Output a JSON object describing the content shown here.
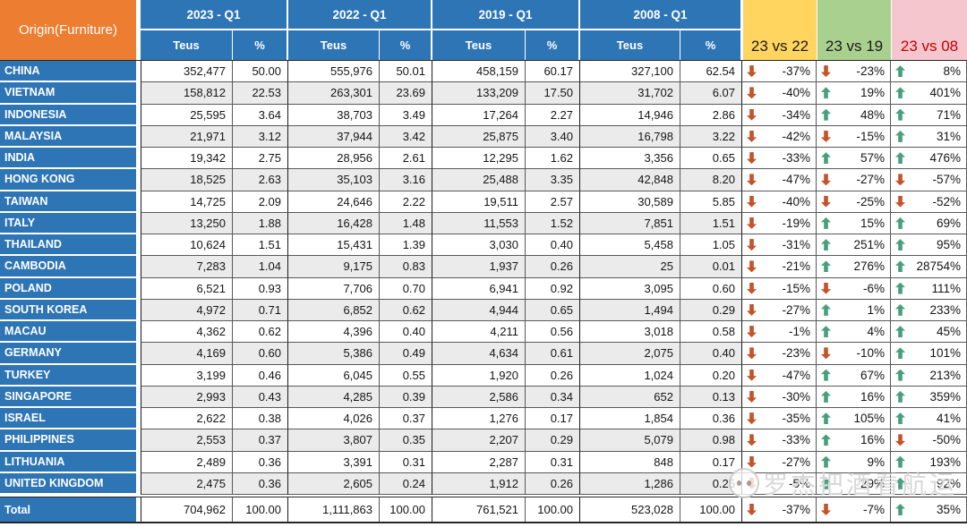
{
  "header": {
    "origin_label": "Origin(Furniture)",
    "periods": [
      {
        "label": "2023 - Q1",
        "teus_label": "Teus",
        "pct_label": "%"
      },
      {
        "label": "2022 - Q1",
        "teus_label": "Teus",
        "pct_label": "%"
      },
      {
        "label": "2019 - Q1",
        "teus_label": "Teus",
        "pct_label": "%"
      },
      {
        "label": "2008 - Q1",
        "teus_label": "Teus",
        "pct_label": "%"
      }
    ],
    "comparisons": [
      {
        "label": "23 vs 22",
        "bg": "#FFD45F",
        "color": "#1a1a1a"
      },
      {
        "label": "23 vs 19",
        "bg": "#A9D08E",
        "color": "#1a1a1a"
      },
      {
        "label": "23 vs 08",
        "bg": "#F6C6CE",
        "color": "#C00000"
      }
    ]
  },
  "colors": {
    "header_blue": "#2E75B6",
    "header_orange": "#ED7D31",
    "alt_row": "#EBEBEB",
    "up_arrow": "#47A07B",
    "down_arrow": "#C4532A"
  },
  "rows": [
    {
      "origin": "CHINA",
      "values": [
        "352,477",
        "50.00",
        "555,976",
        "50.01",
        "458,159",
        "60.17",
        "327,100",
        "62.54"
      ],
      "comps": [
        {
          "dir": "down",
          "val": "-37%"
        },
        {
          "dir": "down",
          "val": "-23%"
        },
        {
          "dir": "up",
          "val": "8%"
        }
      ]
    },
    {
      "origin": "VIETNAM",
      "values": [
        "158,812",
        "22.53",
        "263,301",
        "23.69",
        "133,209",
        "17.50",
        "31,702",
        "6.07"
      ],
      "comps": [
        {
          "dir": "down",
          "val": "-40%"
        },
        {
          "dir": "up",
          "val": "19%"
        },
        {
          "dir": "up",
          "val": "401%"
        }
      ]
    },
    {
      "origin": "INDONESIA",
      "values": [
        "25,595",
        "3.64",
        "38,703",
        "3.49",
        "17,264",
        "2.27",
        "14,946",
        "2.86"
      ],
      "comps": [
        {
          "dir": "down",
          "val": "-34%"
        },
        {
          "dir": "up",
          "val": "48%"
        },
        {
          "dir": "up",
          "val": "71%"
        }
      ]
    },
    {
      "origin": "MALAYSIA",
      "values": [
        "21,971",
        "3.12",
        "37,944",
        "3.42",
        "25,875",
        "3.40",
        "16,798",
        "3.22"
      ],
      "comps": [
        {
          "dir": "down",
          "val": "-42%"
        },
        {
          "dir": "down",
          "val": "-15%"
        },
        {
          "dir": "up",
          "val": "31%"
        }
      ]
    },
    {
      "origin": "INDIA",
      "values": [
        "19,342",
        "2.75",
        "28,956",
        "2.61",
        "12,295",
        "1.62",
        "3,356",
        "0.65"
      ],
      "comps": [
        {
          "dir": "down",
          "val": "-33%"
        },
        {
          "dir": "up",
          "val": "57%"
        },
        {
          "dir": "up",
          "val": "476%"
        }
      ]
    },
    {
      "origin": "HONG KONG",
      "values": [
        "18,525",
        "2.63",
        "35,103",
        "3.16",
        "25,488",
        "3.35",
        "42,848",
        "8.20"
      ],
      "comps": [
        {
          "dir": "down",
          "val": "-47%"
        },
        {
          "dir": "down",
          "val": "-27%"
        },
        {
          "dir": "down",
          "val": "-57%"
        }
      ]
    },
    {
      "origin": "TAIWAN",
      "values": [
        "14,725",
        "2.09",
        "24,646",
        "2.22",
        "19,511",
        "2.57",
        "30,589",
        "5.85"
      ],
      "comps": [
        {
          "dir": "down",
          "val": "-40%"
        },
        {
          "dir": "down",
          "val": "-25%"
        },
        {
          "dir": "down",
          "val": "-52%"
        }
      ]
    },
    {
      "origin": "ITALY",
      "values": [
        "13,250",
        "1.88",
        "16,428",
        "1.48",
        "11,553",
        "1.52",
        "7,851",
        "1.51"
      ],
      "comps": [
        {
          "dir": "down",
          "val": "-19%"
        },
        {
          "dir": "up",
          "val": "15%"
        },
        {
          "dir": "up",
          "val": "69%"
        }
      ]
    },
    {
      "origin": "THAILAND",
      "values": [
        "10,624",
        "1.51",
        "15,431",
        "1.39",
        "3,030",
        "0.40",
        "5,458",
        "1.05"
      ],
      "comps": [
        {
          "dir": "down",
          "val": "-31%"
        },
        {
          "dir": "up",
          "val": "251%"
        },
        {
          "dir": "up",
          "val": "95%"
        }
      ]
    },
    {
      "origin": "CAMBODIA",
      "values": [
        "7,283",
        "1.04",
        "9,175",
        "0.83",
        "1,937",
        "0.26",
        "25",
        "0.01"
      ],
      "comps": [
        {
          "dir": "down",
          "val": "-21%"
        },
        {
          "dir": "up",
          "val": "276%"
        },
        {
          "dir": "up",
          "val": "28754%"
        }
      ]
    },
    {
      "origin": "POLAND",
      "values": [
        "6,521",
        "0.93",
        "7,706",
        "0.70",
        "6,941",
        "0.92",
        "3,095",
        "0.60"
      ],
      "comps": [
        {
          "dir": "down",
          "val": "-15%"
        },
        {
          "dir": "down",
          "val": "-6%"
        },
        {
          "dir": "up",
          "val": "111%"
        }
      ]
    },
    {
      "origin": "SOUTH KOREA",
      "values": [
        "4,972",
        "0.71",
        "6,852",
        "0.62",
        "4,944",
        "0.65",
        "1,494",
        "0.29"
      ],
      "comps": [
        {
          "dir": "down",
          "val": "-27%"
        },
        {
          "dir": "up",
          "val": "1%"
        },
        {
          "dir": "up",
          "val": "233%"
        }
      ]
    },
    {
      "origin": "MACAU",
      "values": [
        "4,362",
        "0.62",
        "4,396",
        "0.40",
        "4,211",
        "0.56",
        "3,018",
        "0.58"
      ],
      "comps": [
        {
          "dir": "down",
          "val": "-1%"
        },
        {
          "dir": "up",
          "val": "4%"
        },
        {
          "dir": "up",
          "val": "45%"
        }
      ]
    },
    {
      "origin": "GERMANY",
      "values": [
        "4,169",
        "0.60",
        "5,386",
        "0.49",
        "4,634",
        "0.61",
        "2,075",
        "0.40"
      ],
      "comps": [
        {
          "dir": "down",
          "val": "-23%"
        },
        {
          "dir": "down",
          "val": "-10%"
        },
        {
          "dir": "up",
          "val": "101%"
        }
      ]
    },
    {
      "origin": "TURKEY",
      "values": [
        "3,199",
        "0.46",
        "6,045",
        "0.55",
        "1,920",
        "0.26",
        "1,024",
        "0.20"
      ],
      "comps": [
        {
          "dir": "down",
          "val": "-47%"
        },
        {
          "dir": "up",
          "val": "67%"
        },
        {
          "dir": "up",
          "val": "213%"
        }
      ]
    },
    {
      "origin": "SINGAPORE",
      "values": [
        "2,993",
        "0.43",
        "4,285",
        "0.39",
        "2,586",
        "0.34",
        "652",
        "0.13"
      ],
      "comps": [
        {
          "dir": "down",
          "val": "-30%"
        },
        {
          "dir": "up",
          "val": "16%"
        },
        {
          "dir": "up",
          "val": "359%"
        }
      ]
    },
    {
      "origin": "ISRAEL",
      "values": [
        "2,622",
        "0.38",
        "4,026",
        "0.37",
        "1,276",
        "0.17",
        "1,854",
        "0.36"
      ],
      "comps": [
        {
          "dir": "down",
          "val": "-35%"
        },
        {
          "dir": "up",
          "val": "105%"
        },
        {
          "dir": "up",
          "val": "41%"
        }
      ]
    },
    {
      "origin": "PHILIPPINES",
      "values": [
        "2,553",
        "0.37",
        "3,807",
        "0.35",
        "2,207",
        "0.29",
        "5,079",
        "0.98"
      ],
      "comps": [
        {
          "dir": "down",
          "val": "-33%"
        },
        {
          "dir": "up",
          "val": "16%"
        },
        {
          "dir": "down",
          "val": "-50%"
        }
      ]
    },
    {
      "origin": "LITHUANIA",
      "values": [
        "2,489",
        "0.36",
        "3,391",
        "0.31",
        "2,287",
        "0.31",
        "848",
        "0.17"
      ],
      "comps": [
        {
          "dir": "down",
          "val": "-27%"
        },
        {
          "dir": "up",
          "val": "9%"
        },
        {
          "dir": "up",
          "val": "193%"
        }
      ]
    },
    {
      "origin": "UNITED KINGDOM",
      "values": [
        "2,475",
        "0.36",
        "2,605",
        "0.24",
        "1,912",
        "0.26",
        "1,286",
        "0.25"
      ],
      "comps": [
        {
          "dir": "down",
          "val": "-5%"
        },
        {
          "dir": "up",
          "val": "29%"
        },
        {
          "dir": "up",
          "val": "92%"
        }
      ]
    }
  ],
  "total": {
    "origin": "Total",
    "values": [
      "704,962",
      "100.00",
      "1,111,863",
      "100.00",
      "761,521",
      "100.00",
      "523,028",
      "100.00"
    ],
    "comps": [
      {
        "dir": "down",
        "val": "-37%"
      },
      {
        "dir": "down",
        "val": "-7%"
      },
      {
        "dir": "up",
        "val": "35%"
      }
    ]
  },
  "watermark": {
    "text": "罗杰把酒看航运",
    "logo": "face-logo"
  }
}
